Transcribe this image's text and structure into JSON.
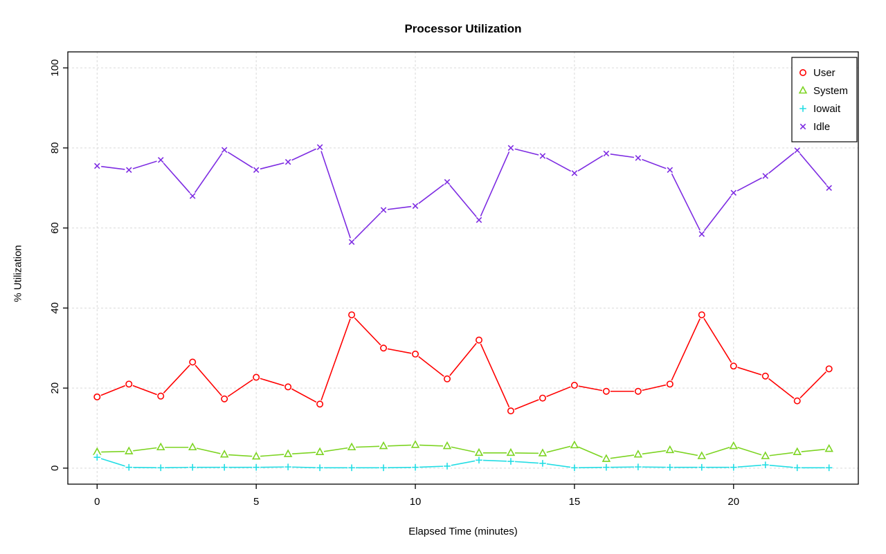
{
  "chart_data": {
    "type": "line",
    "title": "Processor Utilization",
    "xlabel": "Elapsed Time (minutes)",
    "ylabel": "% Utilization",
    "x": [
      0,
      1,
      2,
      3,
      4,
      5,
      6,
      7,
      8,
      9,
      10,
      11,
      12,
      13,
      14,
      15,
      16,
      17,
      18,
      19,
      20,
      21,
      22,
      23
    ],
    "xticks": [
      0,
      5,
      10,
      15,
      20
    ],
    "yticks": [
      0,
      20,
      40,
      60,
      80,
      100
    ],
    "xlim": [
      -0.92,
      23.92
    ],
    "ylim": [
      -4,
      104
    ],
    "grid": true,
    "grid_color": "#d9d9d9",
    "axis_color": "#000000",
    "legend_position": "top-right",
    "series": [
      {
        "name": "User",
        "color": "#ff0000",
        "marker": "circle",
        "values": [
          17.8,
          21.0,
          18.0,
          26.5,
          17.3,
          22.7,
          20.3,
          16.0,
          38.3,
          30.0,
          28.5,
          22.3,
          32.0,
          14.3,
          17.5,
          20.7,
          19.2,
          19.2,
          21.0,
          38.3,
          25.5,
          23.0,
          16.8,
          24.8
        ]
      },
      {
        "name": "System",
        "color": "#7cd421",
        "marker": "triangle",
        "values": [
          4.0,
          4.2,
          5.2,
          5.2,
          3.4,
          2.9,
          3.5,
          4.0,
          5.2,
          5.5,
          5.8,
          5.5,
          3.8,
          3.8,
          3.7,
          5.7,
          2.3,
          3.4,
          4.5,
          3.0,
          5.5,
          3.0,
          4.0,
          4.8
        ]
      },
      {
        "name": "Iowait",
        "color": "#22dde4",
        "marker": "plus",
        "values": [
          2.7,
          0.2,
          0.1,
          0.2,
          0.2,
          0.2,
          0.3,
          0.1,
          0.1,
          0.1,
          0.2,
          0.5,
          2.0,
          1.7,
          1.2,
          0.1,
          0.2,
          0.3,
          0.2,
          0.2,
          0.2,
          0.8,
          0.1,
          0.1
        ]
      },
      {
        "name": "Idle",
        "color": "#7d2be2",
        "marker": "x",
        "values": [
          75.5,
          74.5,
          77.0,
          68.0,
          79.5,
          74.5,
          76.5,
          80.2,
          56.5,
          64.5,
          65.5,
          71.5,
          62.0,
          80.0,
          78.0,
          73.7,
          78.6,
          77.5,
          74.5,
          58.5,
          68.8,
          73.0,
          79.4,
          70.0
        ]
      }
    ]
  }
}
